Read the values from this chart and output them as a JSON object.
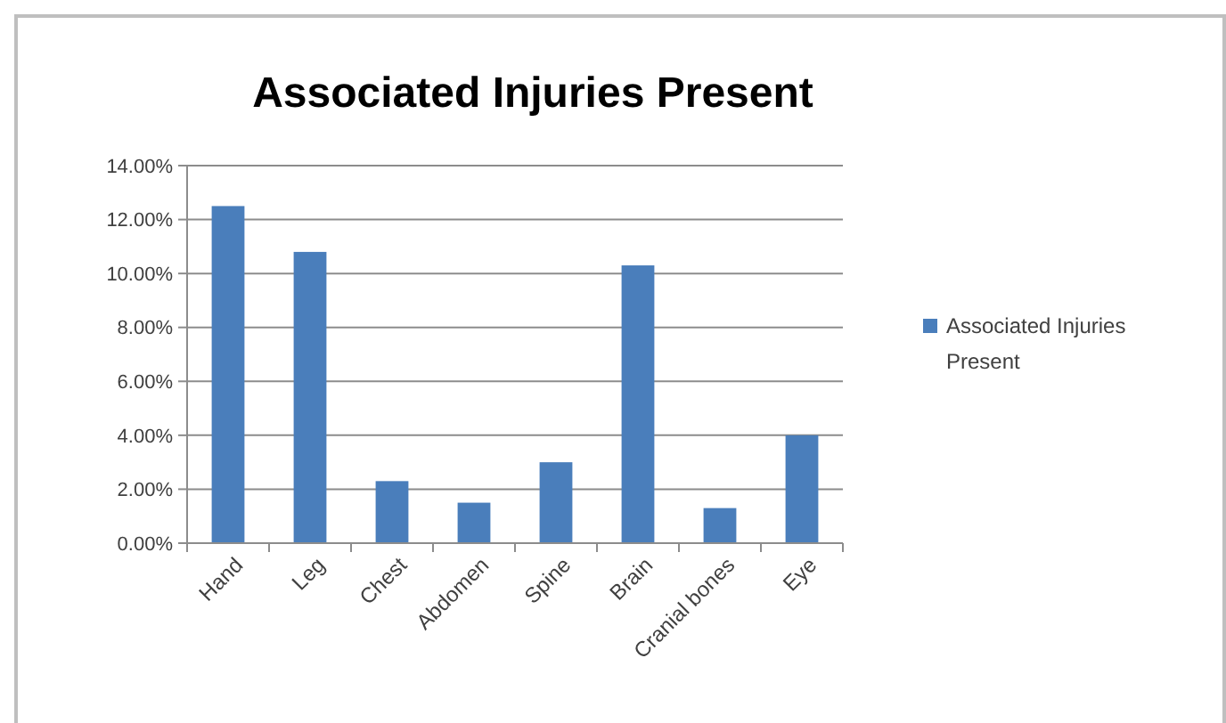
{
  "chart_data": {
    "type": "bar",
    "title": "Associated Injuries Present",
    "categories": [
      "Hand",
      "Leg",
      "Chest",
      "Abdomen",
      "Spine",
      "Brain",
      "Cranial bones",
      "Eye"
    ],
    "series": [
      {
        "name": "Associated Injuries Present",
        "color": "#4a7ebb",
        "values": [
          12.5,
          10.8,
          2.3,
          1.5,
          3.0,
          10.3,
          1.3,
          4.0
        ]
      }
    ],
    "ylim": [
      0,
      14
    ],
    "yticks": [
      {
        "value": 0,
        "label": "0.00%"
      },
      {
        "value": 2,
        "label": "2.00%"
      },
      {
        "value": 4,
        "label": "4.00%"
      },
      {
        "value": 6,
        "label": "6.00%"
      },
      {
        "value": 8,
        "label": "8.00%"
      },
      {
        "value": 10,
        "label": "10.00%"
      },
      {
        "value": 12,
        "label": "12.00%"
      },
      {
        "value": 14,
        "label": "14.00%"
      }
    ],
    "grid": "y",
    "legend": "right"
  }
}
